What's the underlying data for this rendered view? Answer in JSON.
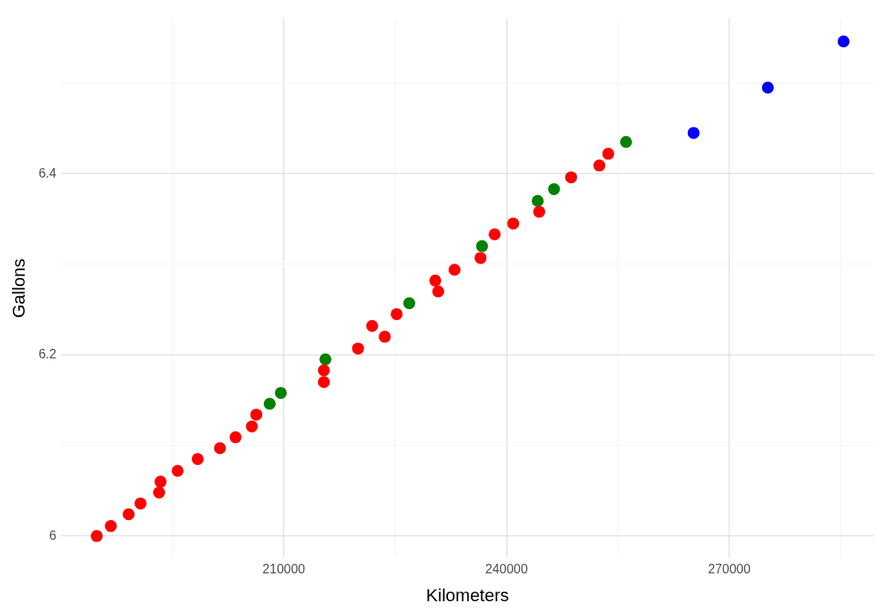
{
  "chart_data": {
    "type": "scatter",
    "xlabel": "Kilometers",
    "ylabel": "Gallons",
    "xlim": [
      180000,
      289500
    ],
    "ylim": [
      5.976,
      6.571
    ],
    "xticks": [
      {
        "value": 195000,
        "label": null
      },
      210000,
      {
        "value": 225000,
        "label": null
      },
      240000,
      {
        "value": 255000,
        "label": null
      },
      270000,
      {
        "value": 285000,
        "label": null
      }
    ],
    "yticks": [
      6,
      {
        "value": 6.1,
        "label": null
      },
      6.2,
      {
        "value": 6.3,
        "label": null
      },
      6.4,
      {
        "value": 6.5,
        "label": null
      }
    ],
    "grid": true,
    "legend": false,
    "marker": "circle",
    "series": [
      {
        "color": "#ff0000",
        "x": [
          184800,
          186700,
          189100,
          190700,
          193200,
          193400,
          195700,
          198400,
          201400,
          203500,
          205700,
          206300,
          215400,
          215400,
          220000,
          221900,
          223600,
          225200,
          230400,
          230800,
          233000,
          236500,
          238400,
          240900,
          244400,
          248700,
          252500,
          253700
        ],
        "values": [
          6.0,
          6.011,
          6.024,
          6.036,
          6.048,
          6.06,
          6.072,
          6.085,
          6.097,
          6.109,
          6.121,
          6.134,
          6.17,
          6.183,
          6.207,
          6.232,
          6.22,
          6.245,
          6.282,
          6.27,
          6.294,
          6.307,
          6.333,
          6.345,
          6.358,
          6.396,
          6.409,
          6.422
        ]
      },
      {
        "color": "#008000",
        "x": [
          208100,
          209600,
          215600,
          226900,
          236700,
          244200,
          246400,
          256100
        ],
        "values": [
          6.146,
          6.158,
          6.195,
          6.257,
          6.32,
          6.37,
          6.383,
          6.435
        ]
      },
      {
        "color": "#0000ff",
        "x": [
          265200,
          275200,
          285400
        ],
        "values": [
          6.445,
          6.495,
          6.546
        ]
      }
    ]
  }
}
